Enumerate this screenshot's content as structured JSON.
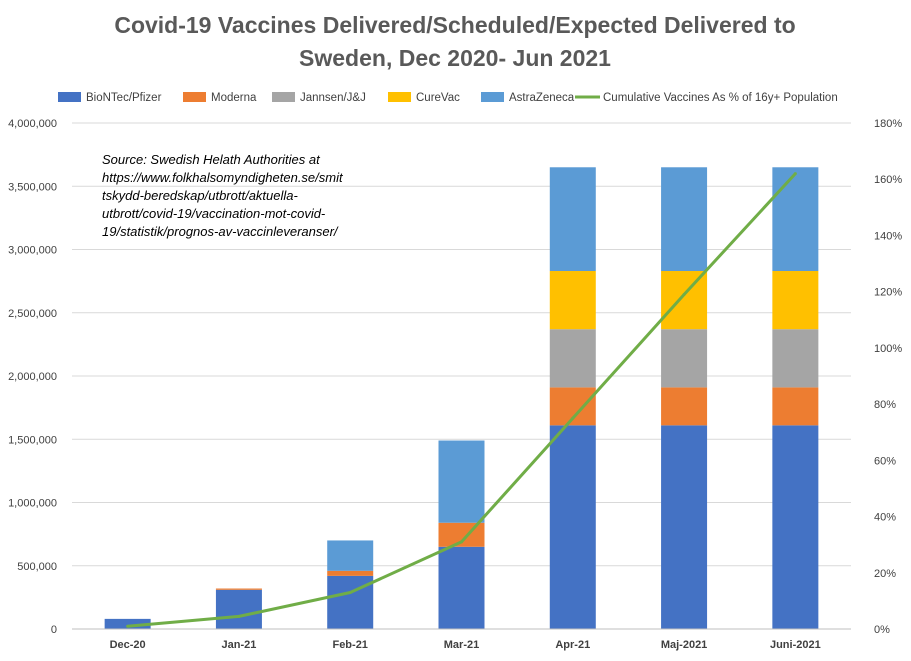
{
  "chart_data": {
    "type": "bar",
    "stacked": true,
    "title_lines": [
      "Covid-19 Vaccines Delivered/Scheduled/Expected Delivered to",
      "Sweden, Dec 2020- Jun 2021"
    ],
    "categories": [
      "Dec-20",
      "Jan-21",
      "Feb-21",
      "Mar-21",
      "Apr-21",
      "Maj-2021",
      "Juni-2021"
    ],
    "series": [
      {
        "name": "BioNTec/Pfizer",
        "color": "#4472C4",
        "values": [
          80000,
          310000,
          420000,
          650000,
          1610000,
          1610000,
          1610000
        ]
      },
      {
        "name": "Moderna",
        "color": "#ED7D31",
        "values": [
          0,
          10000,
          40000,
          190000,
          300000,
          300000,
          300000
        ]
      },
      {
        "name": "Jannsen/J&J",
        "color": "#A5A5A5",
        "values": [
          0,
          0,
          0,
          0,
          460000,
          460000,
          460000
        ]
      },
      {
        "name": "CureVac",
        "color": "#FFC000",
        "values": [
          0,
          0,
          0,
          0,
          460000,
          460000,
          460000
        ]
      },
      {
        "name": "AstraZeneca",
        "color": "#5B9BD5",
        "values": [
          0,
          0,
          240000,
          650000,
          820000,
          820000,
          820000
        ]
      }
    ],
    "line_series": {
      "name": "Cumulative Vaccines As % of 16y+ Population",
      "color": "#70AD47",
      "axis": "right",
      "values": [
        1.0,
        4.5,
        13.0,
        31.0,
        75.0,
        119.0,
        162.0
      ]
    },
    "y_left": {
      "min": 0,
      "max": 4000000,
      "ticks": [
        "0",
        "500,000",
        "1,000,000",
        "1,500,000",
        "2,000,000",
        "2,500,000",
        "3,000,000",
        "3,500,000",
        "4,000,000"
      ]
    },
    "y_right": {
      "min": 0,
      "max": 180,
      "ticks": [
        "0%",
        "20%",
        "40%",
        "60%",
        "80%",
        "100%",
        "120%",
        "140%",
        "160%",
        "180%"
      ]
    },
    "gridlines": true,
    "legend_position": "top",
    "annotation_lines": [
      "Source: Swedish Helath Authorities at",
      "https://www.folkhalsomyndigheten.se/smit",
      "tskydd-beredskap/utbrott/aktuella-",
      "utbrott/covid-19/vaccination-mot-covid-",
      "19/statistik/prognos-av-vaccinleveranser/"
    ]
  }
}
